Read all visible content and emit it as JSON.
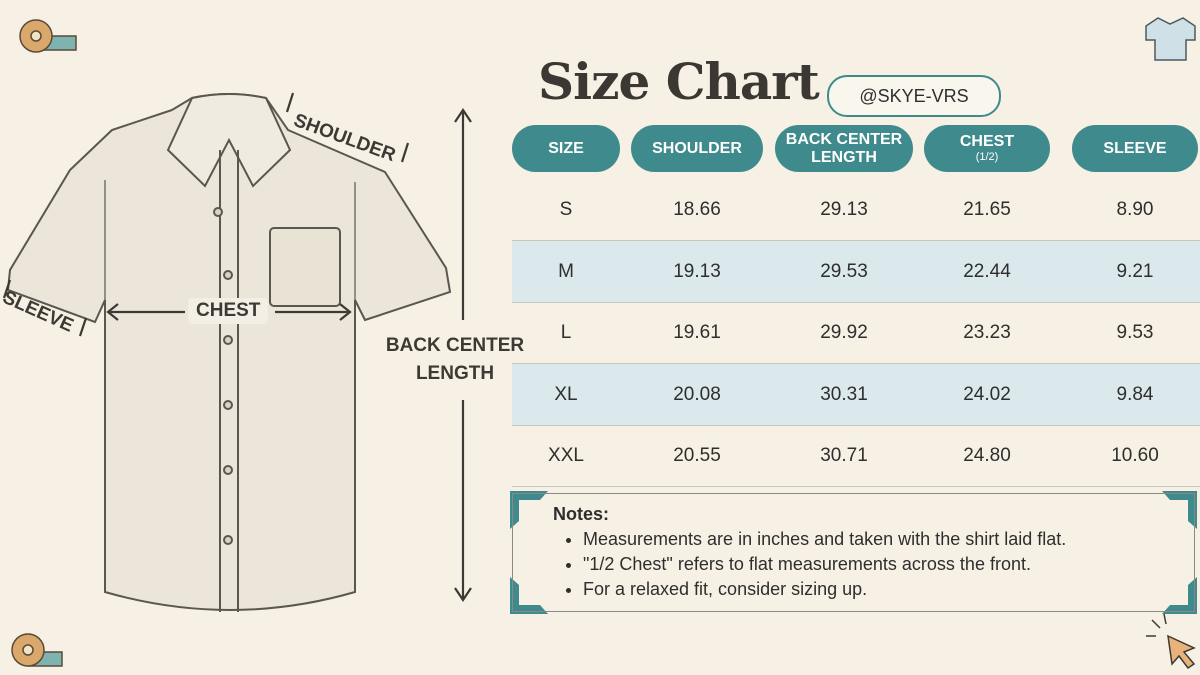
{
  "header": {
    "title": "Size Chart",
    "handle": "@SKYE-VRS"
  },
  "diagram": {
    "shoulder": "SHOULDER",
    "sleeve": "SLEEVE",
    "chest": "CHEST",
    "back_center_length": "BACK CENTER LENGTH"
  },
  "table": {
    "headers": [
      {
        "label": "SIZE"
      },
      {
        "label": "SHOULDER"
      },
      {
        "label": "BACK CENTER LENGTH"
      },
      {
        "label": "CHEST",
        "sub": "(1/2)"
      },
      {
        "label": "SLEEVE"
      }
    ],
    "rows": [
      [
        "S",
        "18.66",
        "29.13",
        "21.65",
        "8.90"
      ],
      [
        "M",
        "19.13",
        "29.53",
        "22.44",
        "9.21"
      ],
      [
        "L",
        "19.61",
        "29.92",
        "23.23",
        "9.53"
      ],
      [
        "XL",
        "20.08",
        "30.31",
        "24.02",
        "9.84"
      ],
      [
        "XXL",
        "20.55",
        "30.71",
        "24.80",
        "10.60"
      ]
    ]
  },
  "notes": {
    "title": "Notes:",
    "items": [
      "Measurements are in inches and taken with the shirt laid flat.",
      "\"1/2 Chest\" refers to flat measurements across the front.",
      "For a relaxed fit, consider sizing up."
    ]
  }
}
